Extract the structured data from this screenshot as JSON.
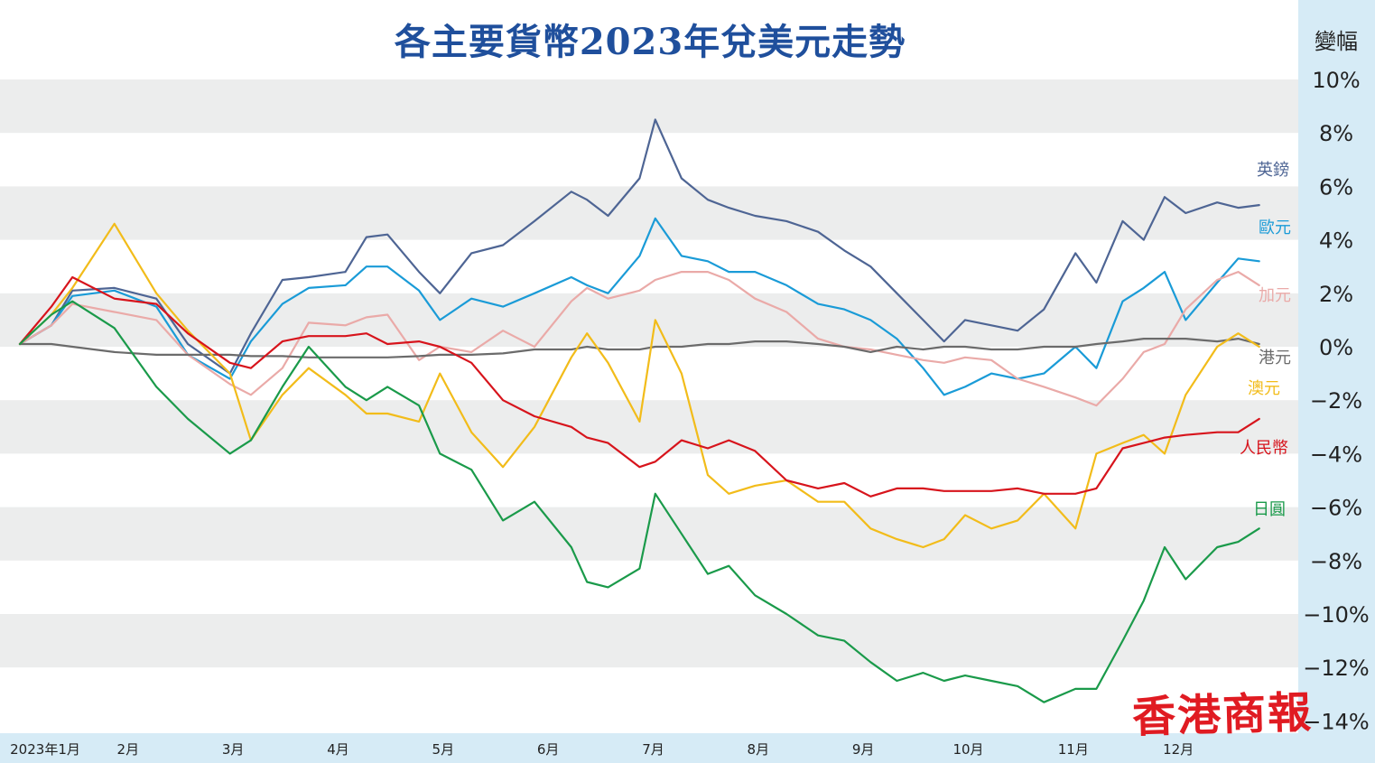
{
  "chart_data": {
    "type": "line",
    "title": "各主要貨幣2023年兌美元走勢",
    "ylabel": "變幅",
    "ylim": [
      -14,
      10
    ],
    "y_ticks": [
      "10%",
      "8%",
      "6%",
      "4%",
      "2%",
      "0%",
      "−2%",
      "−4%",
      "−6%",
      "−8%",
      "−10%",
      "−12%",
      "−14%"
    ],
    "y_tick_values": [
      10,
      8,
      6,
      4,
      2,
      0,
      -2,
      -4,
      -6,
      -8,
      -10,
      -12,
      -14
    ],
    "x_ticks": [
      "2023年1月",
      "2月",
      "3月",
      "4月",
      "5月",
      "6月",
      "7月",
      "8月",
      "9月",
      "10月",
      "11月",
      "12月"
    ],
    "x_tick_months": [
      1,
      2,
      3,
      4,
      5,
      6,
      7,
      8,
      9,
      10,
      11,
      12
    ],
    "xlim": [
      1,
      13
    ],
    "grid": "horizontal bands",
    "legend": "labels at right end of each line",
    "series": [
      {
        "name": "英鎊",
        "color": "#4e6594",
        "x": [
          1.0,
          1.3,
          1.5,
          1.9,
          2.3,
          2.6,
          3.0,
          3.2,
          3.5,
          3.75,
          4.1,
          4.3,
          4.5,
          4.8,
          5.0,
          5.3,
          5.6,
          5.9,
          6.25,
          6.4,
          6.6,
          6.9,
          7.05,
          7.3,
          7.55,
          7.75,
          8.0,
          8.3,
          8.6,
          8.85,
          9.1,
          9.35,
          9.6,
          9.8,
          10.0,
          10.25,
          10.5,
          10.75,
          11.05,
          11.25,
          11.5,
          11.7,
          11.9,
          12.1,
          12.4,
          12.6,
          12.8
        ],
        "y": [
          0.1,
          0.8,
          2.1,
          2.2,
          1.8,
          0.1,
          -1.0,
          0.5,
          2.5,
          2.6,
          2.8,
          4.1,
          4.2,
          2.8,
          2.0,
          3.5,
          3.8,
          4.7,
          5.8,
          5.5,
          4.9,
          6.3,
          8.5,
          6.3,
          5.5,
          5.2,
          4.9,
          4.7,
          4.3,
          3.6,
          3.0,
          2.0,
          1.0,
          0.2,
          1.0,
          0.8,
          0.6,
          1.4,
          3.5,
          2.4,
          4.7,
          4.0,
          5.6,
          5.0,
          5.4,
          5.2,
          5.3
        ]
      },
      {
        "name": "歐元",
        "color": "#1a9bd7",
        "x": [
          1.0,
          1.3,
          1.5,
          1.9,
          2.3,
          2.6,
          3.0,
          3.2,
          3.5,
          3.75,
          4.1,
          4.3,
          4.5,
          4.8,
          5.0,
          5.3,
          5.6,
          5.9,
          6.25,
          6.4,
          6.6,
          6.9,
          7.05,
          7.3,
          7.55,
          7.75,
          8.0,
          8.3,
          8.6,
          8.85,
          9.1,
          9.35,
          9.6,
          9.8,
          10.0,
          10.25,
          10.5,
          10.75,
          11.05,
          11.25,
          11.5,
          11.7,
          11.9,
          12.1,
          12.4,
          12.6,
          12.8
        ],
        "y": [
          0.1,
          0.8,
          1.9,
          2.1,
          1.5,
          -0.3,
          -1.2,
          0.2,
          1.6,
          2.2,
          2.3,
          3.0,
          3.0,
          2.1,
          1.0,
          1.8,
          1.5,
          2.0,
          2.6,
          2.3,
          2.0,
          3.4,
          4.8,
          3.4,
          3.2,
          2.8,
          2.8,
          2.3,
          1.6,
          1.4,
          1.0,
          0.3,
          -0.8,
          -1.8,
          -1.5,
          -1.0,
          -1.2,
          -1.0,
          0.0,
          -0.8,
          1.7,
          2.2,
          2.8,
          1.0,
          2.4,
          3.3,
          3.2
        ]
      },
      {
        "name": "加元",
        "color": "#eaaaa8",
        "x": [
          1.0,
          1.3,
          1.5,
          1.9,
          2.3,
          2.6,
          3.0,
          3.2,
          3.5,
          3.75,
          4.1,
          4.3,
          4.5,
          4.8,
          5.0,
          5.3,
          5.6,
          5.9,
          6.25,
          6.4,
          6.6,
          6.9,
          7.05,
          7.3,
          7.55,
          7.75,
          8.0,
          8.3,
          8.6,
          8.85,
          9.1,
          9.35,
          9.6,
          9.8,
          10.0,
          10.25,
          10.5,
          10.75,
          11.05,
          11.25,
          11.5,
          11.7,
          11.9,
          12.1,
          12.4,
          12.6,
          12.8
        ],
        "y": [
          0.1,
          0.8,
          1.6,
          1.3,
          1.0,
          -0.3,
          -1.4,
          -1.8,
          -0.8,
          0.9,
          0.8,
          1.1,
          1.2,
          -0.5,
          0.0,
          -0.2,
          0.6,
          0.0,
          1.7,
          2.2,
          1.8,
          2.1,
          2.5,
          2.8,
          2.8,
          2.5,
          1.8,
          1.3,
          0.3,
          0.0,
          -0.1,
          -0.3,
          -0.5,
          -0.6,
          -0.4,
          -0.5,
          -1.2,
          -1.5,
          -1.9,
          -2.2,
          -1.2,
          -0.2,
          0.1,
          1.4,
          2.5,
          2.8,
          2.3
        ]
      },
      {
        "name": "港元",
        "color": "#6b6b6b",
        "x": [
          1.0,
          1.3,
          1.5,
          1.9,
          2.3,
          2.6,
          3.0,
          3.2,
          3.5,
          3.75,
          4.1,
          4.3,
          4.5,
          4.8,
          5.0,
          5.3,
          5.6,
          5.9,
          6.25,
          6.4,
          6.6,
          6.9,
          7.05,
          7.3,
          7.55,
          7.75,
          8.0,
          8.3,
          8.6,
          8.85,
          9.1,
          9.35,
          9.6,
          9.8,
          10.0,
          10.25,
          10.5,
          10.75,
          11.05,
          11.25,
          11.5,
          11.7,
          11.9,
          12.1,
          12.4,
          12.6,
          12.8
        ],
        "y": [
          0.1,
          0.1,
          0.0,
          -0.2,
          -0.3,
          -0.3,
          -0.3,
          -0.35,
          -0.35,
          -0.4,
          -0.4,
          -0.4,
          -0.4,
          -0.35,
          -0.3,
          -0.3,
          -0.25,
          -0.1,
          -0.1,
          0.0,
          -0.1,
          -0.1,
          0.0,
          0.0,
          0.1,
          0.1,
          0.2,
          0.2,
          0.1,
          0.0,
          -0.2,
          0.0,
          -0.1,
          0.0,
          0.0,
          -0.1,
          -0.1,
          0.0,
          0.0,
          0.1,
          0.2,
          0.3,
          0.3,
          0.3,
          0.2,
          0.3,
          0.1
        ]
      },
      {
        "name": "澳元",
        "color": "#f2bc1a",
        "x": [
          1.0,
          1.3,
          1.5,
          1.9,
          2.3,
          2.6,
          3.0,
          3.2,
          3.5,
          3.75,
          4.1,
          4.3,
          4.5,
          4.8,
          5.0,
          5.3,
          5.6,
          5.9,
          6.25,
          6.4,
          6.6,
          6.9,
          7.05,
          7.3,
          7.55,
          7.75,
          8.0,
          8.3,
          8.6,
          8.85,
          9.1,
          9.35,
          9.6,
          9.8,
          10.0,
          10.25,
          10.5,
          10.75,
          11.05,
          11.25,
          11.5,
          11.7,
          11.9,
          12.1,
          12.4,
          12.6,
          12.8
        ],
        "y": [
          0.1,
          1.2,
          2.2,
          4.6,
          2.0,
          0.6,
          -1.0,
          -3.5,
          -1.8,
          -0.8,
          -1.8,
          -2.5,
          -2.5,
          -2.8,
          -1.0,
          -3.2,
          -4.5,
          -3.0,
          -0.4,
          0.5,
          -0.6,
          -2.8,
          1.0,
          -1.0,
          -4.8,
          -5.5,
          -5.2,
          -5.0,
          -5.8,
          -5.8,
          -6.8,
          -7.2,
          -7.5,
          -7.2,
          -6.3,
          -6.8,
          -6.5,
          -5.5,
          -6.8,
          -4.0,
          -3.6,
          -3.3,
          -4.0,
          -1.8,
          0.0,
          0.5,
          0.0
        ]
      },
      {
        "name": "人民幣",
        "color": "#d7141c",
        "x": [
          1.0,
          1.3,
          1.5,
          1.9,
          2.3,
          2.6,
          3.0,
          3.2,
          3.5,
          3.75,
          4.1,
          4.3,
          4.5,
          4.8,
          5.0,
          5.3,
          5.6,
          5.9,
          6.25,
          6.4,
          6.6,
          6.9,
          7.05,
          7.3,
          7.55,
          7.75,
          8.0,
          8.3,
          8.6,
          8.85,
          9.1,
          9.35,
          9.6,
          9.8,
          10.0,
          10.25,
          10.5,
          10.75,
          11.05,
          11.25,
          11.5,
          11.7,
          11.9,
          12.1,
          12.4,
          12.6,
          12.8
        ],
        "y": [
          0.1,
          1.5,
          2.6,
          1.8,
          1.6,
          0.5,
          -0.6,
          -0.8,
          0.2,
          0.4,
          0.4,
          0.5,
          0.1,
          0.2,
          0.0,
          -0.6,
          -2.0,
          -2.6,
          -3.0,
          -3.4,
          -3.6,
          -4.5,
          -4.3,
          -3.5,
          -3.8,
          -3.5,
          -3.9,
          -5.0,
          -5.3,
          -5.1,
          -5.6,
          -5.3,
          -5.3,
          -5.4,
          -5.4,
          -5.4,
          -5.3,
          -5.5,
          -5.5,
          -5.3,
          -3.8,
          -3.6,
          -3.4,
          -3.3,
          -3.2,
          -3.2,
          -2.7
        ]
      },
      {
        "name": "日圓",
        "color": "#1a9a4a",
        "x": [
          1.0,
          1.3,
          1.5,
          1.9,
          2.3,
          2.6,
          3.0,
          3.2,
          3.5,
          3.75,
          4.1,
          4.3,
          4.5,
          4.8,
          5.0,
          5.3,
          5.6,
          5.9,
          6.25,
          6.4,
          6.6,
          6.9,
          7.05,
          7.3,
          7.55,
          7.75,
          8.0,
          8.3,
          8.6,
          8.85,
          9.1,
          9.35,
          9.6,
          9.8,
          10.0,
          10.25,
          10.5,
          10.75,
          11.05,
          11.25,
          11.5,
          11.7,
          11.9,
          12.1,
          12.4,
          12.6,
          12.8
        ],
        "y": [
          0.1,
          1.2,
          1.7,
          0.7,
          -1.5,
          -2.7,
          -4.0,
          -3.5,
          -1.5,
          0.0,
          -1.5,
          -2.0,
          -1.5,
          -2.2,
          -4.0,
          -4.6,
          -6.5,
          -5.8,
          -7.5,
          -8.8,
          -9.0,
          -8.3,
          -5.5,
          -7.0,
          -8.5,
          -8.2,
          -9.3,
          -10.0,
          -10.8,
          -11.0,
          -11.8,
          -12.5,
          -12.2,
          -12.5,
          -12.3,
          -12.5,
          -12.7,
          -13.3,
          -12.8,
          -12.8,
          -11.0,
          -9.5,
          -7.5,
          -8.7,
          -7.5,
          -7.3,
          -6.8
        ]
      }
    ]
  },
  "branding": {
    "watermark": "香港商報"
  }
}
